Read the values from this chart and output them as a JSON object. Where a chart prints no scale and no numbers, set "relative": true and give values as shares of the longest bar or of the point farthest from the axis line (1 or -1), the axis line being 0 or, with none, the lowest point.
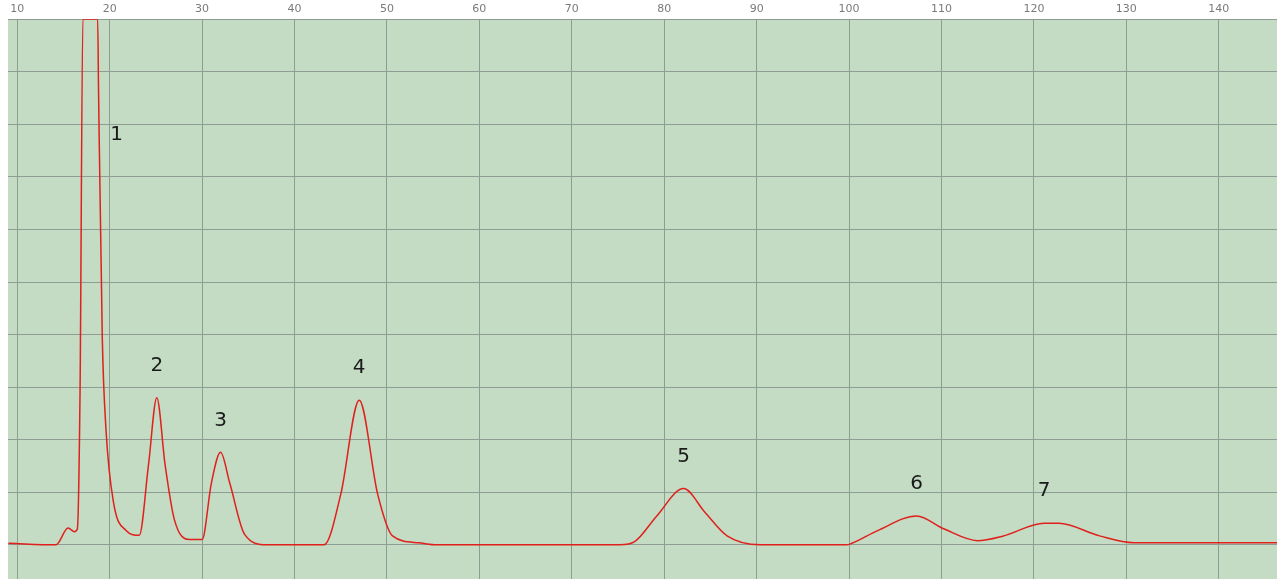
{
  "chart_data": {
    "type": "line",
    "relative": true,
    "grid": true,
    "marker": "none",
    "line_style": "solid",
    "xlim": [
      9,
      146.3
    ],
    "xticks": [
      10,
      20,
      30,
      40,
      50,
      60,
      70,
      80,
      90,
      100,
      110,
      120,
      130,
      140
    ],
    "series": [
      {
        "color": "#e0201c",
        "x": [
          9.1,
          14.2,
          15.5,
          16.2,
          16.5,
          16.8,
          17.1,
          18.7,
          18.8,
          19.2,
          19.6,
          20.4,
          21.8,
          23.2,
          24.2,
          25.1,
          26.0,
          27.0,
          28.6,
          30.0,
          31.0,
          32.0,
          33.0,
          34.6,
          37.0,
          43.2,
          45.0,
          47.0,
          49.0,
          50.6,
          53.4,
          55.4,
          75.2,
          76.8,
          79.2,
          82.1,
          84.4,
          86.8,
          90.4,
          99.7,
          100.3,
          103.1,
          107.3,
          110.3,
          113.9,
          116.7,
          121.1,
          122.7,
          127.1,
          130.8,
          146.3
        ],
        "values": [
          0.003,
          0,
          0.032,
          0.025,
          0.03,
          0.3,
          1,
          1,
          0.86,
          0.395,
          0.22,
          0.082,
          0.027,
          0.018,
          0.152,
          0.28,
          0.152,
          0.048,
          0.01,
          0.01,
          0.117,
          0.176,
          0.117,
          0.02,
          0,
          0,
          0.096,
          0.275,
          0.096,
          0.017,
          0.004,
          0,
          0,
          0.006,
          0.055,
          0.107,
          0.062,
          0.017,
          0,
          0,
          0.003,
          0.027,
          0.055,
          0.03,
          0.008,
          0.017,
          0.041,
          0.041,
          0.017,
          0.004,
          0.004
        ]
      }
    ],
    "annotations": [
      {
        "text": "1",
        "x": 18.8,
        "y": 0.86
      },
      {
        "text": "2",
        "x": 25.1,
        "y": 0.28
      },
      {
        "text": "3",
        "x": 32.0,
        "y": 0.176
      },
      {
        "text": "4",
        "x": 47.0,
        "y": 0.275
      },
      {
        "text": "5",
        "x": 82.1,
        "y": 0.107
      },
      {
        "text": "6",
        "x": 107.3,
        "y": 0.055
      },
      {
        "text": "7",
        "x": 121.1,
        "y": 0.041
      }
    ]
  }
}
